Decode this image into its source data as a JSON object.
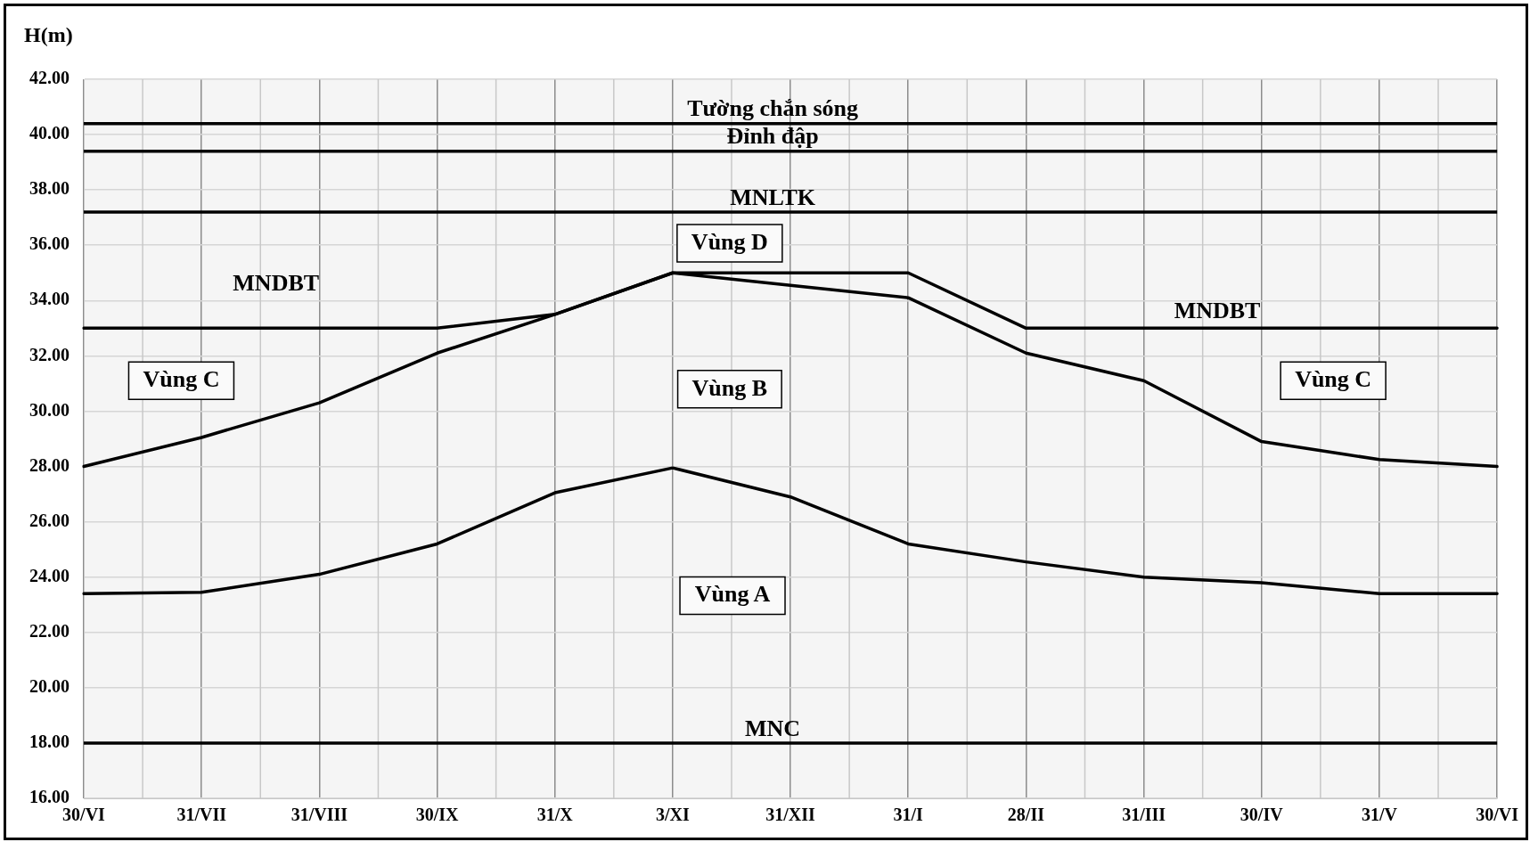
{
  "chart_data": {
    "type": "line",
    "ylabel": "H(m)",
    "categories": [
      "30/VI",
      "31/VII",
      "31/VIII",
      "30/IX",
      "31/X",
      "3/XI",
      "31/XII",
      "31/I",
      "28/II",
      "31/III",
      "30/IV",
      "31/V",
      "30/VI"
    ],
    "series": [
      {
        "color": "#000000",
        "values": [
          33,
          33,
          33,
          33,
          33.5,
          35,
          35,
          35,
          33,
          33,
          33,
          33,
          33
        ]
      },
      {
        "color": "#000000",
        "values": [
          28.0,
          29.05,
          30.3,
          32.1,
          33.5,
          35.0,
          34.55,
          34.1,
          32.1,
          31.1,
          28.9,
          28.25,
          28.0
        ]
      },
      {
        "color": "#000000",
        "values": [
          23.4,
          23.45,
          24.1,
          25.2,
          27.05,
          27.95,
          26.9,
          25.2,
          24.55,
          24.0,
          23.8,
          23.4,
          23.4
        ]
      }
    ],
    "ylim": [
      16,
      42
    ],
    "yticks": [
      {
        "value": 16,
        "label": "16.00"
      },
      {
        "value": 18,
        "label": "18.00"
      },
      {
        "value": 20,
        "label": "20.00"
      },
      {
        "value": 22,
        "label": "22.00"
      },
      {
        "value": 24,
        "label": "24.00"
      },
      {
        "value": 26,
        "label": "26.00"
      },
      {
        "value": 28,
        "label": "28.00"
      },
      {
        "value": 30,
        "label": "30.00"
      },
      {
        "value": 32,
        "label": "32.00"
      },
      {
        "value": 34,
        "label": "34.00"
      },
      {
        "value": 36,
        "label": "36.00"
      },
      {
        "value": 38,
        "label": "38.00"
      },
      {
        "value": 40,
        "label": "40.00"
      },
      {
        "value": 42,
        "label": "42.00"
      }
    ],
    "ref_lines": [
      {
        "axis": "y",
        "value": 40.4,
        "label": "Tường chắn sóng",
        "color": "#000000"
      },
      {
        "axis": "y",
        "value": 39.4,
        "label": "Đỉnh đập",
        "color": "#000000"
      },
      {
        "axis": "y",
        "value": 37.2,
        "label": "MNLTK",
        "color": "#000000"
      },
      {
        "axis": "y",
        "value": 18,
        "label": "MNC",
        "color": "#000000"
      }
    ],
    "annotations": [
      "MNDBT",
      "MNDBT",
      "Vùng D",
      "Vùng C",
      "Vùng B",
      "Vùng C",
      "Vùng A"
    ],
    "grid": true,
    "legend": false,
    "marker": "none",
    "line_style": "solid"
  }
}
